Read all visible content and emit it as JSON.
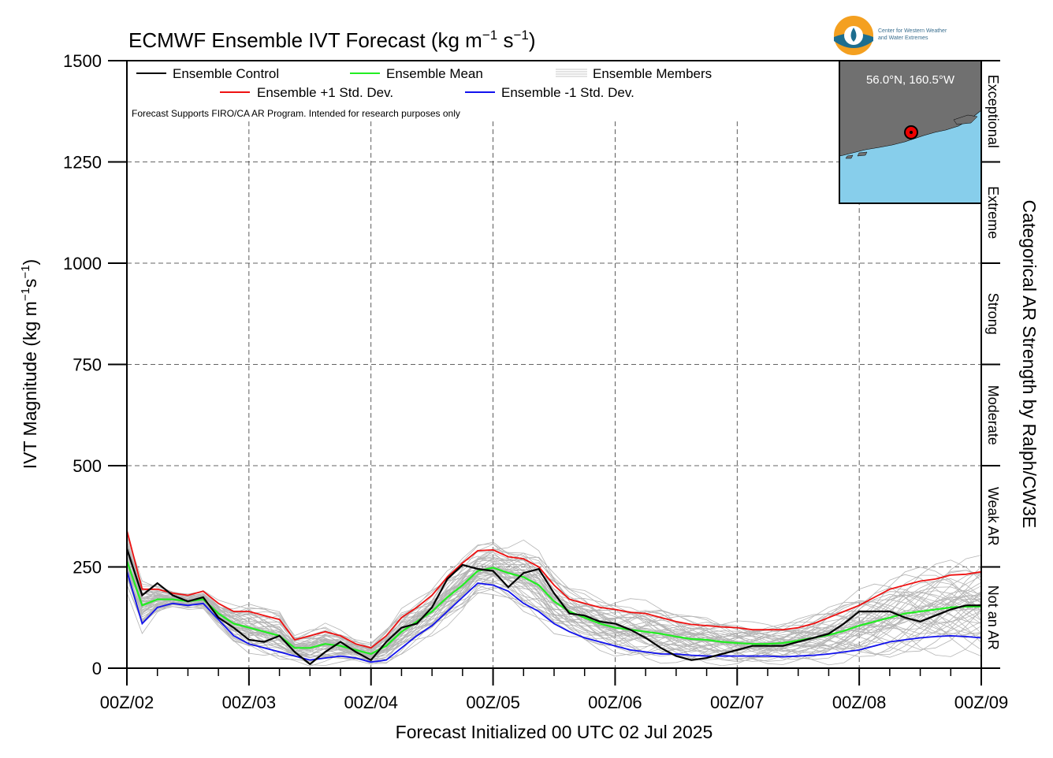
{
  "chart_data": {
    "type": "line",
    "title_prefix": "ECMWF Ensemble IVT Forecast (kg m",
    "title_sup1": "−1",
    "title_mid": " s",
    "title_sup2": "−1",
    "title_suffix": ")",
    "xlabel": "Forecast Initialized 00 UTC 02 Jul 2025",
    "ylabel_prefix": "IVT Magnitude (kg m",
    "ylabel_sup1": "−1",
    "ylabel_mid": "s",
    "ylabel_sup2": "−1",
    "ylabel_suffix": ")",
    "right_label": "Categorical AR Strength by Ralph/CW3E",
    "note": "Forecast Supports FIRO/CA AR Program. Intended for research purposes only",
    "ylim": [
      0,
      1500
    ],
    "xlim": [
      0,
      168
    ],
    "yticks": [
      0,
      250,
      500,
      750,
      1000,
      1250,
      1500
    ],
    "xticks": [
      {
        "t": 0,
        "label": "00Z/02"
      },
      {
        "t": 24,
        "label": "00Z/03"
      },
      {
        "t": 48,
        "label": "00Z/04"
      },
      {
        "t": 72,
        "label": "00Z/05"
      },
      {
        "t": 96,
        "label": "00Z/06"
      },
      {
        "t": 120,
        "label": "00Z/07"
      },
      {
        "t": 144,
        "label": "00Z/08"
      },
      {
        "t": 168,
        "label": "00Z/09"
      }
    ],
    "grid": true,
    "categories": [
      {
        "label": "Not an AR",
        "lo": 0,
        "hi": 250
      },
      {
        "label": "Weak AR",
        "lo": 250,
        "hi": 500
      },
      {
        "label": "Moderate",
        "lo": 500,
        "hi": 750
      },
      {
        "label": "Strong",
        "lo": 750,
        "hi": 1000
      },
      {
        "label": "Extreme",
        "lo": 1000,
        "hi": 1250
      },
      {
        "label": "Exceptional",
        "lo": 1250,
        "hi": 1500
      }
    ],
    "legend": {
      "placement": "top-left",
      "items": [
        {
          "name": "Ensemble Control",
          "color": "#000000"
        },
        {
          "name": "Ensemble Mean",
          "color": "#22ee22"
        },
        {
          "name": "Ensemble Members",
          "color": "#b4b4b4"
        },
        {
          "name": "Ensemble +1 Std. Dev.",
          "color": "#ee1111"
        },
        {
          "name": "Ensemble -1 Std. Dev.",
          "color": "#1111ee"
        }
      ]
    },
    "series": [
      {
        "name": "Ensemble Control",
        "color": "#000000",
        "width": 2.2,
        "x": [
          0,
          3,
          6,
          9,
          12,
          15,
          18,
          21,
          24,
          27,
          30,
          33,
          36,
          39,
          42,
          45,
          48,
          51,
          54,
          57,
          60,
          63,
          66,
          69,
          72,
          75,
          78,
          81,
          84,
          87,
          90,
          93,
          96,
          99,
          102,
          105,
          108,
          111,
          114,
          117,
          120,
          123,
          126,
          129,
          132,
          135,
          138,
          141,
          144,
          147,
          150,
          153,
          156,
          159,
          162,
          165,
          168
        ],
        "y": [
          295,
          180,
          210,
          180,
          165,
          175,
          125,
          100,
          70,
          65,
          80,
          40,
          10,
          40,
          65,
          40,
          20,
          65,
          100,
          110,
          150,
          220,
          255,
          245,
          240,
          200,
          235,
          245,
          185,
          135,
          130,
          115,
          110,
          95,
          75,
          50,
          30,
          20,
          25,
          35,
          45,
          55,
          55,
          55,
          65,
          75,
          85,
          110,
          140,
          140,
          140,
          125,
          115,
          130,
          145,
          155,
          155
        ]
      },
      {
        "name": "Ensemble Mean",
        "color": "#22ee22",
        "width": 2.2,
        "x": [
          0,
          3,
          6,
          9,
          12,
          15,
          18,
          21,
          24,
          27,
          30,
          33,
          36,
          39,
          42,
          45,
          48,
          51,
          54,
          57,
          60,
          63,
          66,
          69,
          72,
          75,
          78,
          81,
          84,
          87,
          90,
          93,
          96,
          99,
          102,
          105,
          108,
          111,
          114,
          117,
          120,
          123,
          126,
          129,
          132,
          135,
          138,
          141,
          144,
          147,
          150,
          153,
          156,
          159,
          162,
          165,
          168
        ],
        "y": [
          265,
          155,
          170,
          170,
          165,
          170,
          135,
          110,
          100,
          90,
          80,
          50,
          50,
          60,
          55,
          45,
          35,
          55,
          90,
          115,
          140,
          175,
          205,
          240,
          248,
          235,
          225,
          205,
          165,
          140,
          125,
          110,
          100,
          95,
          90,
          85,
          78,
          72,
          70,
          65,
          62,
          60,
          60,
          62,
          68,
          75,
          82,
          92,
          105,
          115,
          125,
          135,
          140,
          145,
          150,
          152,
          152
        ]
      },
      {
        "name": "Ensemble +1 Std. Dev.",
        "color": "#ee1111",
        "width": 1.8,
        "x": [
          0,
          3,
          6,
          9,
          12,
          15,
          18,
          21,
          24,
          27,
          30,
          33,
          36,
          39,
          42,
          45,
          48,
          51,
          54,
          57,
          60,
          63,
          66,
          69,
          72,
          75,
          78,
          81,
          84,
          87,
          90,
          93,
          96,
          99,
          102,
          105,
          108,
          111,
          114,
          117,
          120,
          123,
          126,
          129,
          132,
          135,
          138,
          141,
          144,
          147,
          150,
          153,
          156,
          159,
          162,
          165,
          168
        ],
        "y": [
          340,
          195,
          195,
          185,
          180,
          190,
          160,
          140,
          140,
          130,
          120,
          70,
          80,
          90,
          80,
          60,
          50,
          80,
          125,
          150,
          180,
          225,
          260,
          290,
          292,
          275,
          270,
          250,
          205,
          170,
          160,
          150,
          145,
          138,
          135,
          125,
          115,
          108,
          105,
          102,
          100,
          95,
          95,
          95,
          100,
          110,
          125,
          140,
          155,
          175,
          195,
          205,
          215,
          220,
          230,
          232,
          238
        ]
      },
      {
        "name": "Ensemble -1 Std. Dev.",
        "color": "#1111ee",
        "width": 1.8,
        "x": [
          0,
          3,
          6,
          9,
          12,
          15,
          18,
          21,
          24,
          27,
          30,
          33,
          36,
          39,
          42,
          45,
          48,
          51,
          54,
          57,
          60,
          63,
          66,
          69,
          72,
          75,
          78,
          81,
          84,
          87,
          90,
          93,
          96,
          99,
          102,
          105,
          108,
          111,
          114,
          117,
          120,
          123,
          126,
          129,
          132,
          135,
          138,
          141,
          144,
          147,
          150,
          153,
          156,
          159,
          162,
          165,
          168
        ],
        "y": [
          240,
          110,
          150,
          160,
          155,
          160,
          120,
          80,
          60,
          50,
          40,
          30,
          20,
          25,
          30,
          25,
          15,
          20,
          50,
          80,
          105,
          140,
          175,
          210,
          205,
          190,
          160,
          140,
          110,
          90,
          75,
          65,
          55,
          45,
          40,
          35,
          35,
          32,
          30,
          30,
          30,
          30,
          30,
          28,
          30,
          32,
          35,
          40,
          45,
          55,
          65,
          70,
          75,
          78,
          80,
          78,
          75
        ]
      }
    ]
  },
  "inset": {
    "location": "56.0°N, 160.5°W",
    "water_color": "#87ceeb",
    "land_color": "#707070",
    "marker_color": "#ee0000"
  },
  "logo": {
    "line1": "Center for Western Weather",
    "line2": "and Water Extremes"
  }
}
